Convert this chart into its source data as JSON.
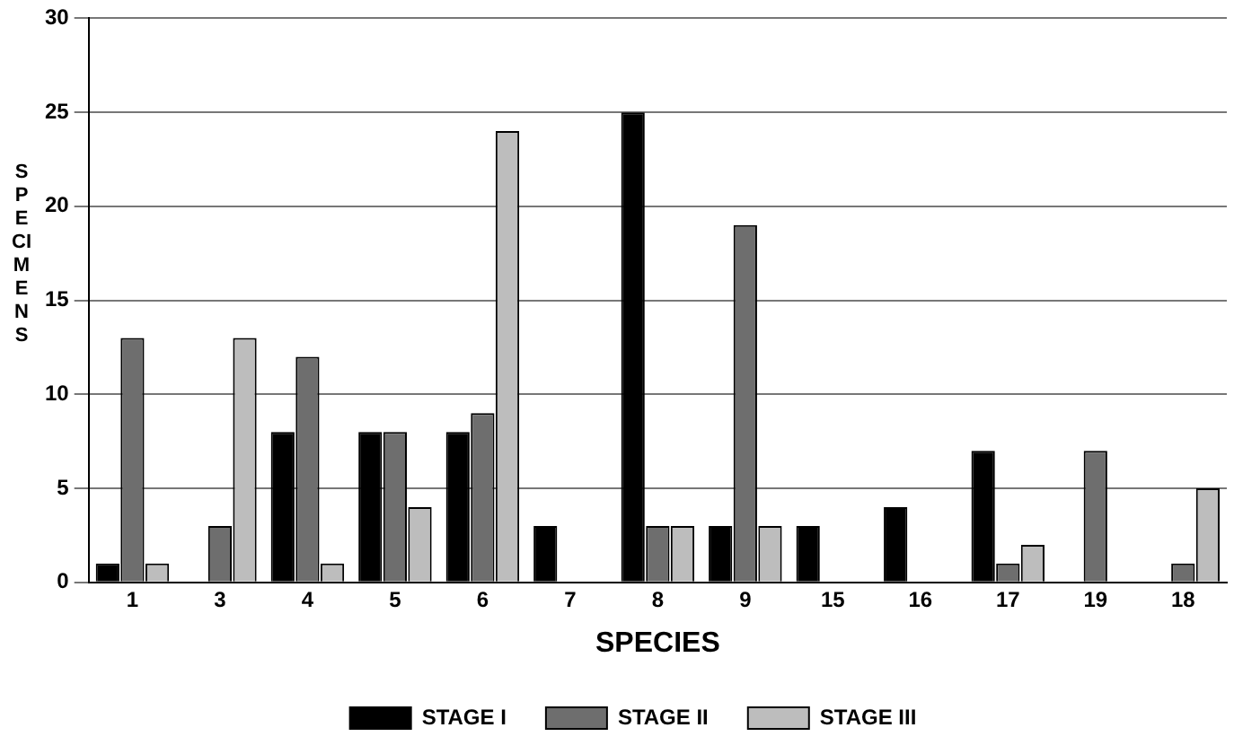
{
  "chart_data": {
    "type": "bar",
    "xlabel": "SPECIES",
    "ylabel": "SPECIMENS",
    "categories": [
      "1",
      "3",
      "4",
      "5",
      "6",
      "7",
      "8",
      "9",
      "15",
      "16",
      "17",
      "19",
      "18"
    ],
    "series": [
      {
        "name": "STAGE I",
        "color": "#000000",
        "values": [
          1,
          0,
          8,
          8,
          8,
          3,
          25,
          3,
          3,
          4,
          7,
          0,
          0
        ]
      },
      {
        "name": "STAGE II",
        "color": "#6e6e6e",
        "values": [
          13,
          3,
          12,
          8,
          9,
          0,
          3,
          19,
          0,
          0,
          1,
          7,
          1
        ]
      },
      {
        "name": "STAGE III",
        "color": "#bdbdbd",
        "values": [
          1,
          13,
          1,
          4,
          24,
          0,
          3,
          3,
          0,
          0,
          2,
          0,
          5
        ]
      }
    ],
    "ylim": [
      0,
      30
    ],
    "yticks": [
      0,
      5,
      10,
      15,
      20,
      25,
      30
    ],
    "grid": "y",
    "legend": "bottom"
  }
}
